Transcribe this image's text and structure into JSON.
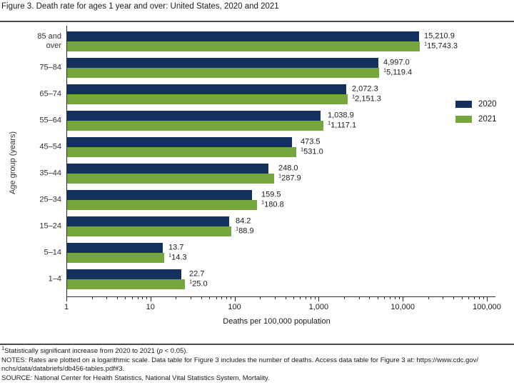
{
  "title": "Figure 3. Death rate for ages 1 year and over: United States, 2020 and 2021",
  "chart_data": {
    "type": "bar",
    "orientation": "horizontal",
    "x_scale": "log",
    "title": "Figure 3. Death rate for ages 1 year and over: United States, 2020 and 2021",
    "xlabel": "Deaths per 100,000 population",
    "ylabel": "Age group (years)",
    "xlim": [
      1,
      100000
    ],
    "grid": false,
    "x_ticks": [
      1,
      10,
      100,
      1000,
      10000,
      100000
    ],
    "x_tick_labels": [
      "1",
      "10",
      "100",
      "1,000",
      "10,000",
      "100,000"
    ],
    "categories": [
      "85 and over",
      "75–84",
      "65–74",
      "55–64",
      "45–54",
      "35–44",
      "25–34",
      "15–24",
      "5–14",
      "1–4"
    ],
    "categories_display": [
      "85 and\nover",
      "75–84",
      "65–74",
      "55–64",
      "45–54",
      "35–44",
      "25–34",
      "15–24",
      "5–14",
      "1–4"
    ],
    "sig_marker": "1",
    "series": [
      {
        "name": "2020",
        "color": "#13315e",
        "values": [
          15210.9,
          4997.0,
          2072.3,
          1038.9,
          473.5,
          248.0,
          159.5,
          84.2,
          13.7,
          22.7
        ],
        "labels": [
          "15,210.9",
          "4,997.0",
          "2,072.3",
          "1,038.9",
          "473.5",
          "248.0",
          "159.5",
          "84.2",
          "13.7",
          "22.7"
        ],
        "sig": [
          false,
          false,
          false,
          false,
          false,
          false,
          false,
          false,
          false,
          false
        ]
      },
      {
        "name": "2021",
        "color": "#76a73d",
        "values": [
          15743.3,
          5119.4,
          2151.3,
          1117.1,
          531.0,
          287.9,
          180.8,
          88.9,
          14.3,
          25.0
        ],
        "labels": [
          "15,743.3",
          "5,119.4",
          "2,151.3",
          "1,117.1",
          "531.0",
          "287.9",
          "180.8",
          "88.9",
          "14.3",
          "25.0"
        ],
        "sig": [
          true,
          true,
          true,
          true,
          true,
          true,
          true,
          true,
          true,
          true
        ]
      }
    ],
    "legend": {
      "position": "right",
      "entries": [
        {
          "label": "2020",
          "color": "#13315e"
        },
        {
          "label": "2021",
          "color": "#76a73d"
        }
      ]
    }
  },
  "footnotes": {
    "sig": {
      "sup": "1",
      "pre": "Statistically significant increase from 2020 to 2021 (",
      "italic": "p",
      "post": " < 0.05)."
    },
    "notes_line1": "NOTES: Rates are plotted on a logarithmic scale. Data table for Figure 3 includes the number of deaths. Access data table for Figure 3 at: https://www.cdc.gov/",
    "notes_line2": "nchs/data/databriefs/db456-tables.pdf#3.",
    "source": "SOURCE: National Center for Health Statistics, National Vital Statistics System, Mortality."
  }
}
